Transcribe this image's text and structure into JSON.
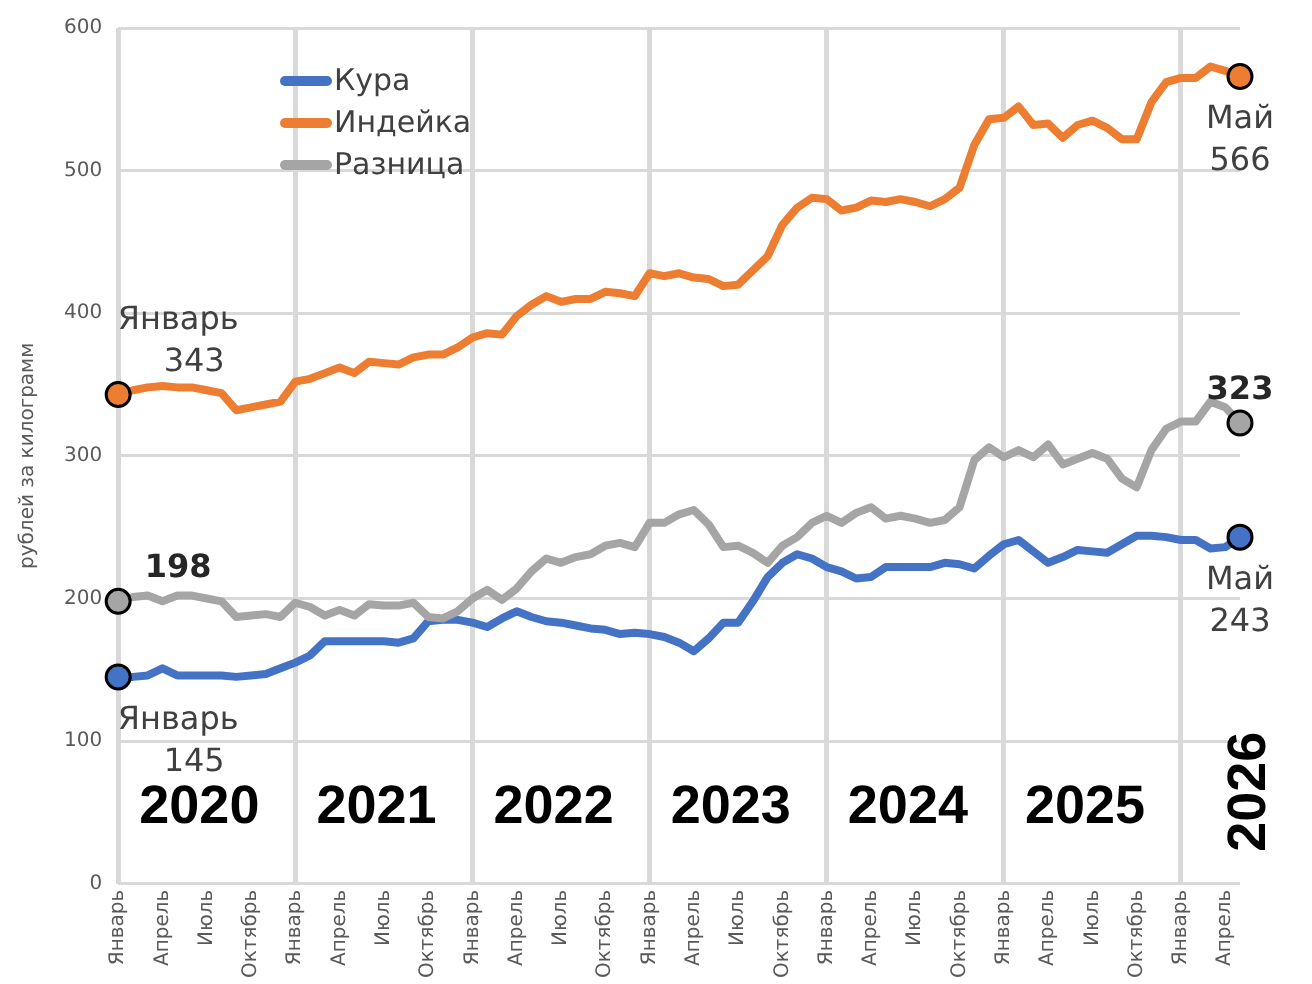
{
  "chart_data": {
    "type": "line",
    "ylabel": "рублей за килограмм",
    "categories": [
      "Январь",
      null,
      null,
      "Апрель",
      null,
      null,
      "Июль",
      null,
      null,
      "Октябрь",
      null,
      null,
      "Январь",
      null,
      null,
      "Апрель",
      null,
      null,
      "Июль",
      null,
      null,
      "Октябрь",
      null,
      null,
      "Январь",
      null,
      null,
      "Апрель",
      null,
      null,
      "Июль",
      null,
      null,
      "Октябрь",
      null,
      null,
      "Январь",
      null,
      null,
      "Апрель",
      null,
      null,
      "Июль",
      null,
      null,
      "Октябрь",
      null,
      null,
      "Январь",
      null,
      null,
      "Апрель",
      null,
      null,
      "Июль",
      null,
      null,
      "Октябрь",
      null,
      null,
      "Январь",
      null,
      null,
      "Апрель",
      null,
      null,
      "Июль",
      null,
      null,
      "Октябрь",
      null,
      null,
      "Январь",
      null,
      null,
      "Апрель",
      null
    ],
    "series": [
      {
        "name": "Кура",
        "color": "#4472c4",
        "values": [
          145,
          145,
          146,
          151,
          146,
          146,
          146,
          146,
          145,
          146,
          147,
          151,
          155,
          160,
          170,
          170,
          170,
          170,
          170,
          169,
          172,
          184,
          185,
          185,
          183,
          180,
          186,
          191,
          187,
          184,
          183,
          181,
          179,
          178,
          175,
          176,
          175,
          173,
          169,
          163,
          172,
          183,
          183,
          198,
          215,
          225,
          231,
          228,
          222,
          219,
          214,
          215,
          222,
          222,
          222,
          222,
          225,
          224,
          221,
          230,
          238,
          241,
          233,
          225,
          229,
          234,
          233,
          232,
          238,
          244,
          244,
          243,
          241,
          241,
          235,
          236,
          243
        ]
      },
      {
        "name": "Индейка",
        "color": "#ed7d31",
        "values": [
          343,
          346,
          348,
          349,
          348,
          348,
          346,
          344,
          332,
          334,
          336,
          338,
          352,
          354,
          358,
          362,
          358,
          366,
          365,
          364,
          369,
          371,
          371,
          376,
          383,
          386,
          385,
          398,
          406,
          412,
          408,
          410,
          410,
          415,
          414,
          412,
          428,
          426,
          428,
          425,
          424,
          419,
          420,
          430,
          440,
          462,
          474,
          481,
          480,
          472,
          474,
          479,
          478,
          480,
          478,
          475,
          480,
          488,
          518,
          536,
          537,
          545,
          532,
          533,
          523,
          532,
          535,
          530,
          522,
          522,
          548,
          562,
          565,
          565,
          573,
          570,
          566
        ]
      },
      {
        "name": "Разница",
        "color": "#a5a5a5",
        "values": [
          198,
          201,
          202,
          198,
          202,
          202,
          200,
          198,
          187,
          188,
          189,
          187,
          197,
          194,
          188,
          192,
          188,
          196,
          195,
          195,
          197,
          187,
          186,
          191,
          200,
          206,
          199,
          207,
          219,
          228,
          225,
          229,
          231,
          237,
          239,
          236,
          253,
          253,
          259,
          262,
          252,
          236,
          237,
          232,
          225,
          237,
          243,
          253,
          258,
          253,
          260,
          264,
          256,
          258,
          256,
          253,
          255,
          264,
          297,
          306,
          299,
          304,
          299,
          308,
          294,
          298,
          302,
          298,
          284,
          278,
          304,
          319,
          324,
          324,
          338,
          334,
          323
        ]
      }
    ],
    "ylim": [
      0,
      600
    ],
    "yticks": [
      0,
      100,
      200,
      300,
      400,
      500,
      600
    ],
    "grid": true,
    "legend": "top left",
    "marker": "none",
    "line_style": "solid",
    "annotations": [
      "Январь 343",
      "Январь 145",
      "198",
      "Май 566",
      "Май 243",
      "323",
      "2020",
      "2021",
      "2022",
      "2023",
      "2024",
      "2025",
      "2026"
    ]
  }
}
